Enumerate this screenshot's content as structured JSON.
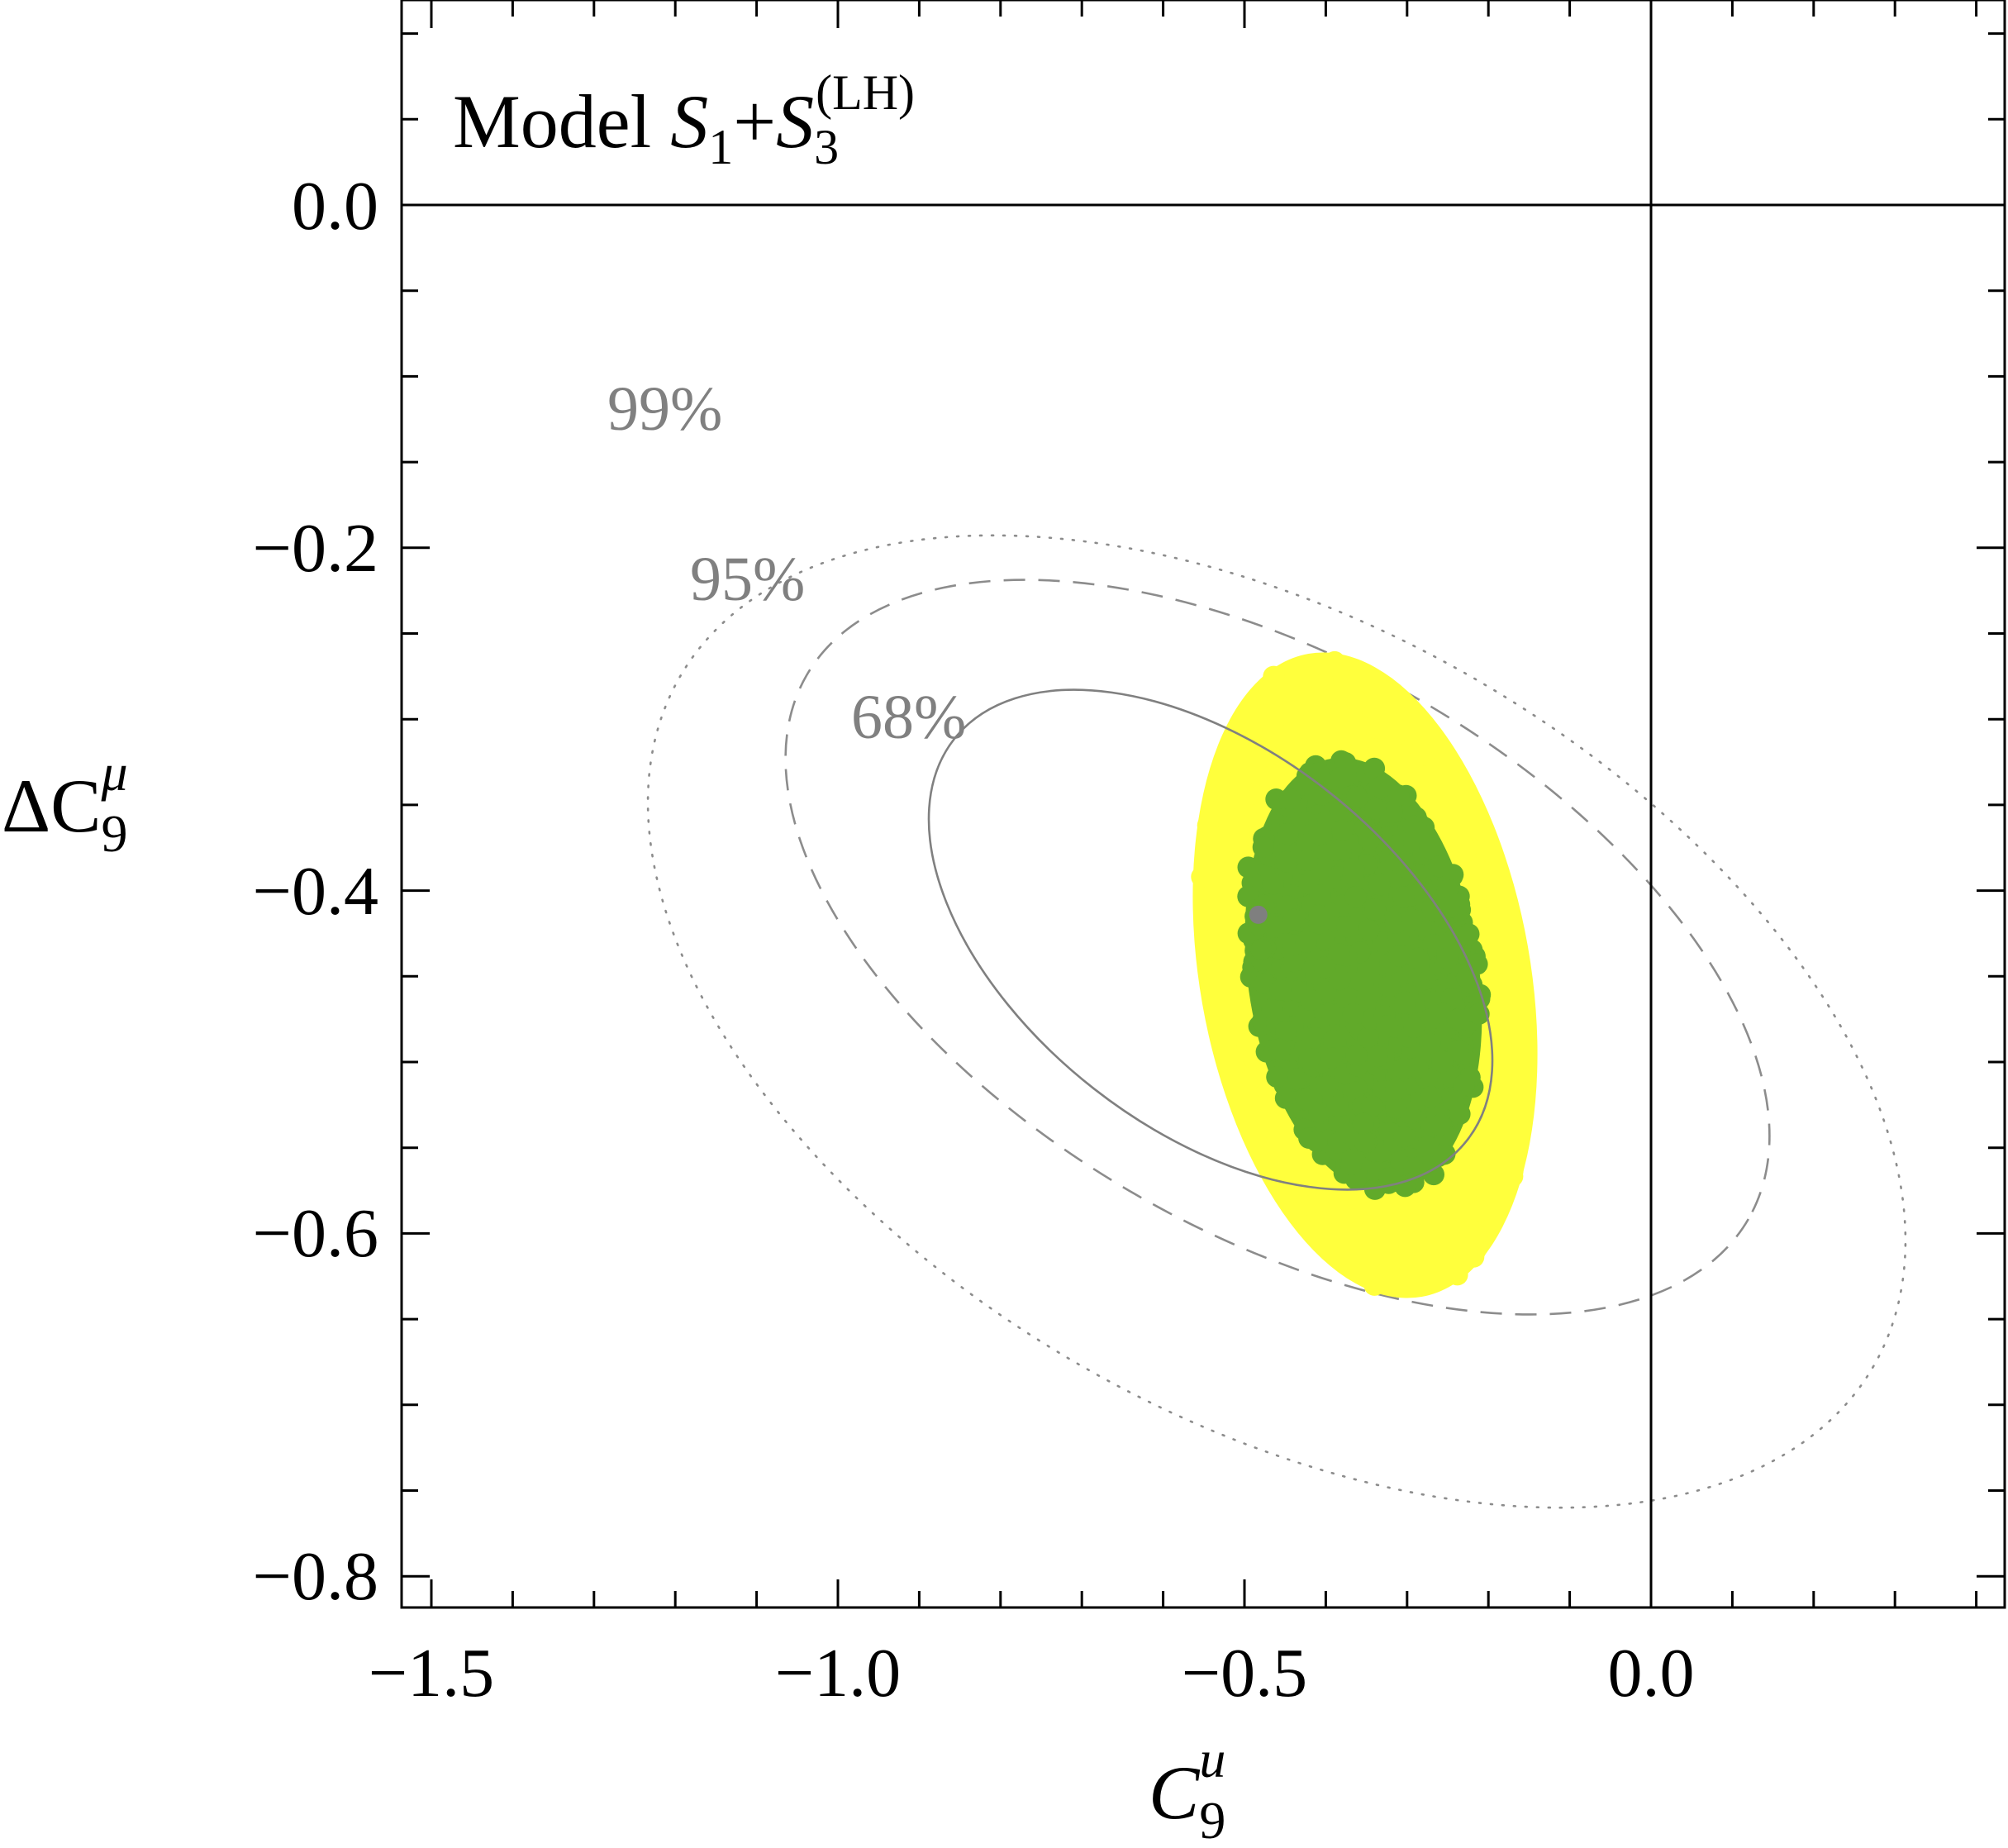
{
  "chart_data": {
    "type": "scatter",
    "title": "",
    "model_label": {
      "prefix": "Model ",
      "s1": "S",
      "s1_sub": "1",
      "plus": "+",
      "s3": "S",
      "s3_sub": "3",
      "s3_sup": "(LH)"
    },
    "xlabel": {
      "main": "C",
      "sub": "9",
      "sup": "u"
    },
    "ylabel": {
      "delta": "Δ",
      "main": "C",
      "sub": "9",
      "sup": "μ"
    },
    "xlim": [
      -1.55,
      0.43
    ],
    "ylim": [
      -0.82,
      0.12
    ],
    "x_ticks": [
      -1.5,
      -1.0,
      -0.5,
      0.0
    ],
    "x_tick_labels": [
      "−1.5",
      "−1.0",
      "−0.5",
      "0.0"
    ],
    "y_ticks": [
      0.0,
      -0.2,
      -0.4,
      -0.6,
      -0.8
    ],
    "y_tick_labels": [
      "0.0",
      "−0.2",
      "−0.4",
      "−0.6",
      "−0.8"
    ],
    "grid": false,
    "reference_lines": {
      "x0": 0.0,
      "y0": 0.0
    },
    "contours": [
      {
        "label": "68%",
        "cx": -0.52,
        "cy": -0.435,
        "style": "solid",
        "label_pos": [
          -0.87,
          -0.305
        ]
      },
      {
        "label": "95%",
        "cx": -0.63,
        "cy": -0.46,
        "style": "dashed",
        "label_pos": [
          -1.16,
          -0.22
        ]
      },
      {
        "label": "99%",
        "cx": -0.55,
        "cy": -0.5,
        "style": "dotted",
        "label_pos": [
          -1.26,
          -0.125
        ]
      }
    ],
    "series": [
      {
        "region": "yellow",
        "color": "#ffff3c",
        "center": [
          -0.37,
          -0.46
        ]
      },
      {
        "region": "green",
        "color": "#61aa2a",
        "center": [
          -0.375,
          -0.46
        ]
      }
    ],
    "best_fit_point": {
      "x": -0.483,
      "y": -0.43,
      "color": "#7f7f7f"
    }
  }
}
